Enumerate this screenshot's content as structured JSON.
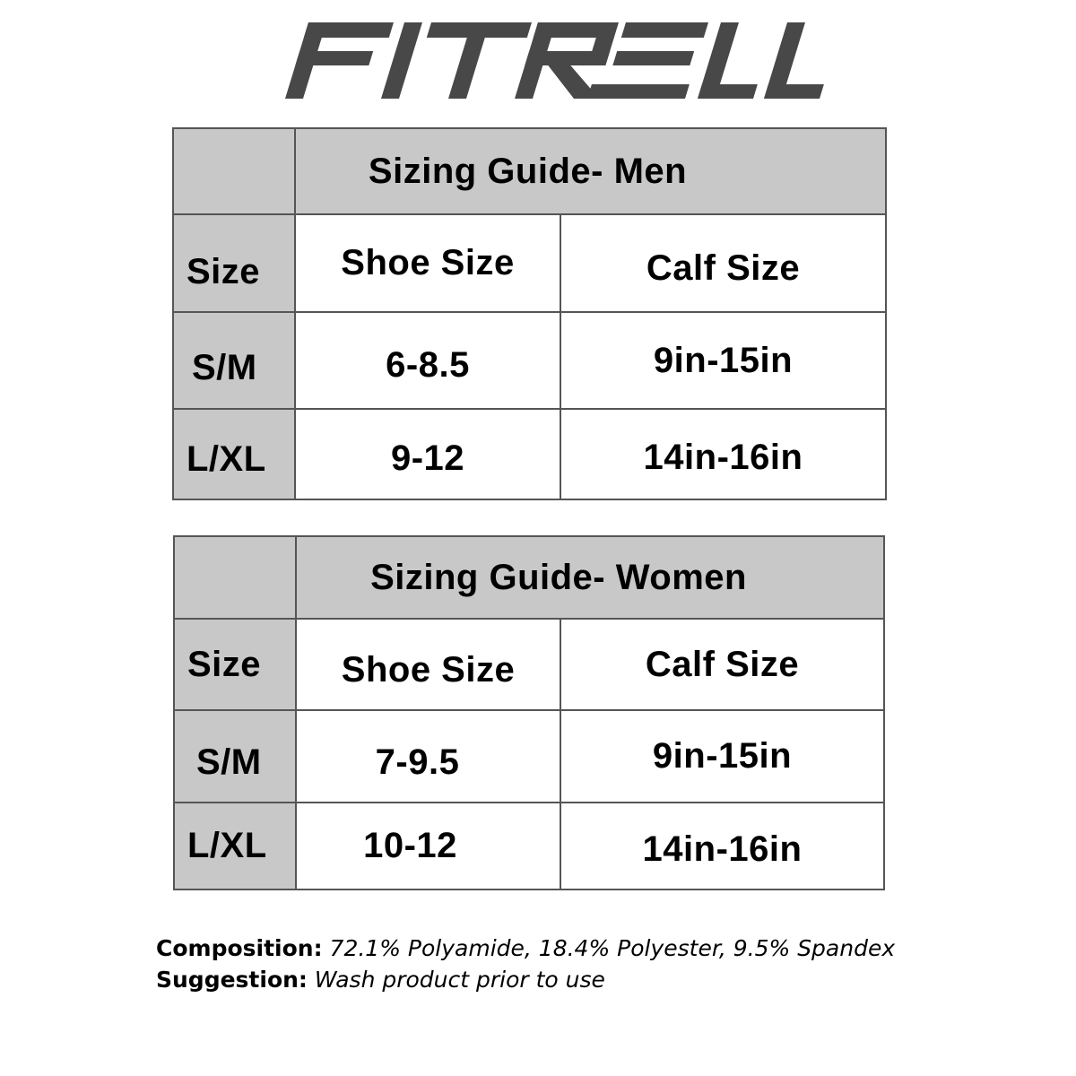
{
  "logo": {
    "text": "FITRELL",
    "color": "#484848"
  },
  "tables": [
    {
      "title": "Sizing Guide- Men",
      "headers": [
        "Size",
        "Shoe Size",
        "Calf Size"
      ],
      "rows": [
        [
          "S/M",
          "6-8.5",
          "9in-15in"
        ],
        [
          "L/XL",
          "9-12",
          "14in-16in"
        ]
      ]
    },
    {
      "title": "Sizing Guide- Women",
      "headers": [
        "Size",
        "Shoe Size",
        "Calf Size"
      ],
      "rows": [
        [
          "S/M",
          "7-9.5",
          "9in-15in"
        ],
        [
          "L/XL",
          "10-12",
          "14in-16in"
        ]
      ]
    }
  ],
  "notes": {
    "composition_label": "Composition:",
    "composition_value": "72.1% Polyamide, 18.4% Polyester, 9.5% Spandex",
    "suggestion_label": "Suggestion:",
    "suggestion_value": "Wash product prior to use"
  },
  "colors": {
    "header_grey": "#c8c8c8",
    "border": "#555555"
  }
}
